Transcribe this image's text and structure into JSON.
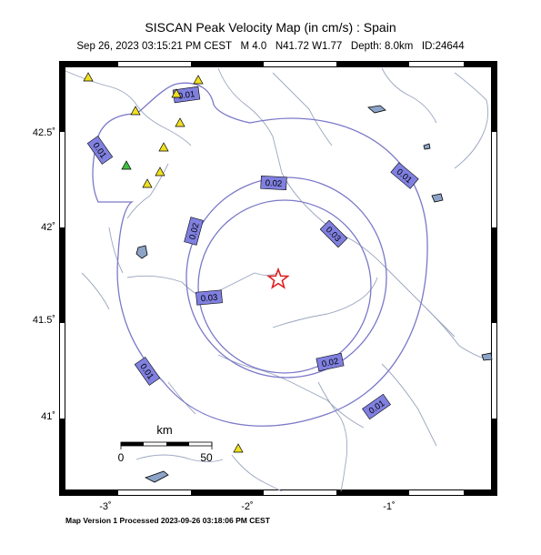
{
  "title": "SISCAN Peak Velocity Map (in cm/s) : Spain",
  "subtitle": {
    "datetime": "Sep 26, 2023 03:15:21 PM CEST",
    "magnitude": "M 4.0",
    "location": "N41.72 W1.77",
    "depth": "Depth: 8.0km",
    "id": "ID:24644"
  },
  "footer": "Map Version 1 Processed 2023-09-26 03:18:06 PM CEST",
  "scale_bar": {
    "unit": "km",
    "labels": [
      "0",
      "50"
    ]
  },
  "axes": {
    "lon_ticks": [
      "-3˚",
      "-2˚",
      "-1˚"
    ],
    "lat_ticks": [
      "42.5˚",
      "42˚",
      "41.5˚",
      "41˚"
    ]
  },
  "epicenter": {
    "lon": -1.77,
    "lat": 41.72,
    "color": "#e02020"
  },
  "contours": {
    "color": "#7b79c8",
    "label_fill": "#8080e0",
    "labels": [
      "0.01",
      "0.01",
      "0.01",
      "0.01",
      "0.01",
      "0.02",
      "0.02",
      "0.02",
      "0.03",
      "0.03"
    ]
  },
  "stations": [
    {
      "color": "#f0e020"
    },
    {
      "color": "#f0e020"
    },
    {
      "color": "#f0e020"
    },
    {
      "color": "#f0e020"
    },
    {
      "color": "#f0e020"
    },
    {
      "color": "#f0e020"
    },
    {
      "color": "#f0e020"
    },
    {
      "color": "#f0e020"
    },
    {
      "color": "#40c040"
    },
    {
      "color": "#f0e020"
    }
  ]
}
